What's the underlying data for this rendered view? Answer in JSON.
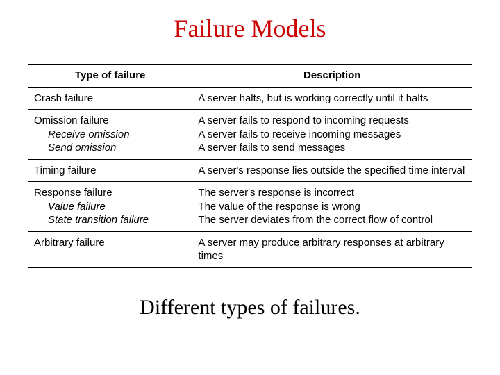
{
  "title": "Failure Models",
  "caption": "Different types of failures.",
  "table": {
    "headers": {
      "type": "Type of failure",
      "desc": "Description"
    },
    "rows": [
      {
        "type_main": "Crash failure",
        "desc_lines": [
          "A server halts, but is working correctly until it halts"
        ]
      },
      {
        "type_main": "Omission failure",
        "type_subs": [
          "Receive omission",
          "Send omission"
        ],
        "desc_lines": [
          "A server fails to respond to incoming requests",
          "A server fails to receive incoming messages",
          "A server fails to send messages"
        ]
      },
      {
        "type_main": "Timing failure",
        "desc_lines": [
          "A server's response lies outside the specified time interval"
        ]
      },
      {
        "type_main": "Response failure",
        "type_subs": [
          "Value failure",
          "State transition failure"
        ],
        "desc_lines": [
          "The server's response is incorrect",
          "The value of the response is wrong",
          "The server deviates from the correct flow of control"
        ]
      },
      {
        "type_main": "Arbitrary failure",
        "desc_lines": [
          "A server may produce arbitrary responses at arbitrary times"
        ]
      }
    ]
  },
  "style": {
    "title_color": "#cc0000",
    "title_fontsize": 36,
    "body_fontsize": 15,
    "caption_fontsize": 30,
    "border_color": "#000000",
    "background_color": "#ffffff"
  }
}
